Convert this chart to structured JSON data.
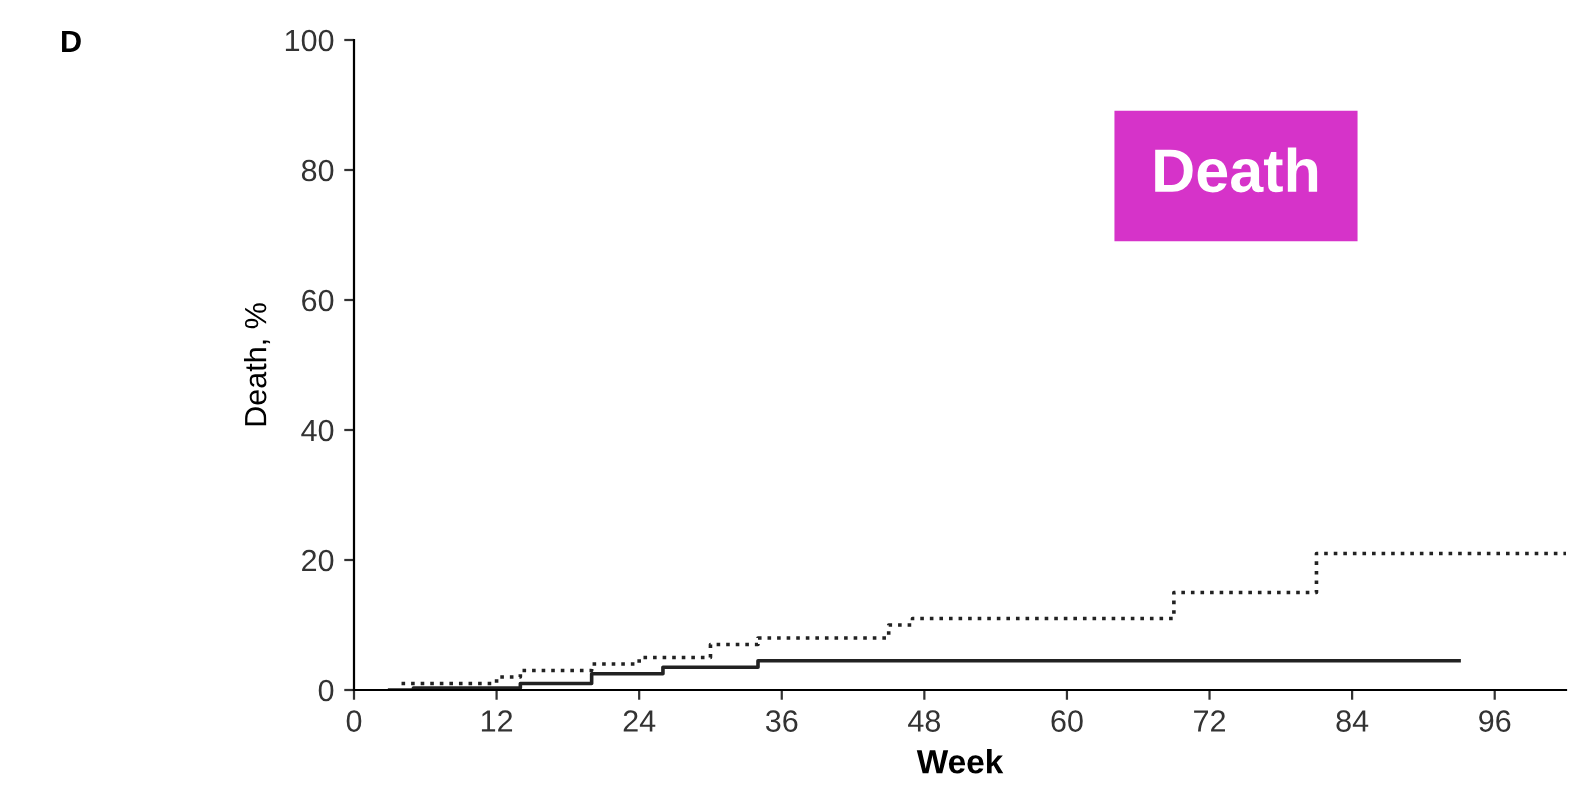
{
  "chart_data": {
    "type": "step",
    "xlabel": "Week",
    "ylabel": "Death, %",
    "annotations": [
      "D",
      "Death"
    ],
    "series": [
      {
        "color": "#222222",
        "line_style": "dotted",
        "x": [
          4,
          5,
          12,
          14,
          20,
          24,
          30,
          34,
          45,
          47,
          69,
          81,
          102
        ],
        "values": [
          1,
          1,
          2,
          3,
          4,
          5,
          7,
          8,
          10,
          11,
          15,
          21,
          21
        ]
      },
      {
        "color": "#222222",
        "line_style": "solid",
        "x": [
          3,
          5,
          14,
          20,
          26,
          34,
          93
        ],
        "values": [
          0,
          0.3,
          1,
          2.5,
          3.5,
          4.5,
          4.5
        ]
      }
    ],
    "xlim": [
      0,
      102
    ],
    "xticks": [
      0,
      12,
      24,
      36,
      48,
      60,
      72,
      84,
      96
    ],
    "ylim": [
      0,
      100
    ],
    "yticks": [
      0,
      20,
      40,
      60,
      80,
      100
    ],
    "grid": false,
    "legend": false
  }
}
